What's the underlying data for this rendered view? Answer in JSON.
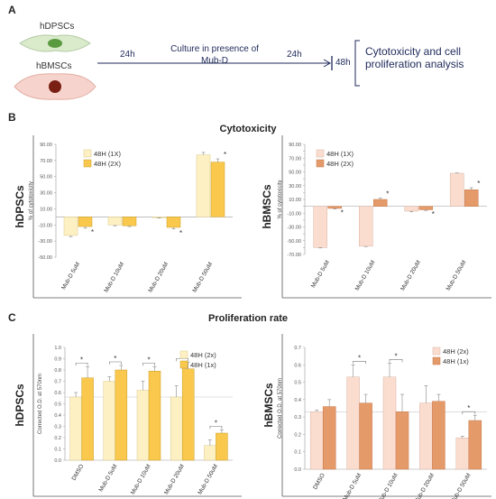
{
  "panels": {
    "A": "A",
    "B": "B",
    "C": "C"
  },
  "schematic": {
    "cell1": "hDPSCs",
    "cell2": "hBMSCs",
    "time1": "24h",
    "culture": "Culture in presence of Mub-D",
    "time2": "24h",
    "time3": "48h",
    "outcome": "Cytotoxicity and cell proliferation analysis"
  },
  "titles": {
    "cytotoxicity": "Cytotoxicity",
    "proliferation": "Proliferation rate"
  },
  "row_labels": {
    "dpsc": "hDPSCs",
    "bmsc": "hBMSCs"
  },
  "colors": {
    "light_yellow": "#FDF1C3",
    "yellow": "#F9C84C",
    "light_salmon": "#FBDDD0",
    "salmon": "#E59A6A"
  },
  "chart_data": [
    {
      "id": "b_left",
      "type": "bar",
      "ylabel": "% of cytotoxicity",
      "ylim": [
        -50,
        90
      ],
      "yticks": [
        -50,
        -30,
        -10,
        10,
        30,
        50,
        70,
        90
      ],
      "categories": [
        "Mub-D 5uM",
        "Mub-D 10uM",
        "Mub-D 20uM",
        "Mub-D 50uM"
      ],
      "series": [
        {
          "name": "48H (1X)",
          "values": [
            -23,
            -10,
            -1,
            77
          ],
          "errors": [
            1.5,
            1,
            0.5,
            3
          ]
        },
        {
          "name": "48H (2X)",
          "values": [
            -12,
            -11,
            -13,
            68
          ],
          "errors": [
            2,
            1,
            2,
            4
          ]
        }
      ],
      "stars": [
        "*",
        "",
        "*",
        "*"
      ],
      "legend": "top-left"
    },
    {
      "id": "b_right",
      "type": "bar",
      "ylabel": "% of cytotoxicity",
      "ylim": [
        -70,
        90
      ],
      "yticks": [
        -70,
        -60,
        -50,
        -40,
        -30,
        -20,
        -10,
        0,
        10,
        20,
        30,
        40,
        50,
        60,
        70,
        80,
        90
      ],
      "categories": [
        "Mub-D 5uM",
        "Mub-D 10uM",
        "Mub-D 20uM",
        "Mub-D 50uM"
      ],
      "series": [
        {
          "name": "48H (1X)",
          "values": [
            -60,
            -58,
            -7,
            48
          ],
          "errors": [
            0.5,
            0.5,
            1,
            0.5
          ]
        },
        {
          "name": "48H (2X)",
          "values": [
            -3,
            10,
            -5,
            24
          ],
          "errors": [
            1,
            2,
            1,
            3
          ]
        }
      ],
      "stars": [
        "*",
        "*",
        "*",
        "*"
      ],
      "legend": "top-left"
    },
    {
      "id": "c_left",
      "type": "bar",
      "ylabel": "Corrected O.D. at 570nm",
      "ylim": [
        0,
        1.0
      ],
      "yticks": [
        0,
        0.1,
        0.2,
        0.3,
        0.4,
        0.5,
        0.6,
        0.7,
        0.8,
        0.9,
        1.0
      ],
      "categories": [
        "DMSO",
        "Mub-D 5uM",
        "Mub-D 10uM",
        "Mub-D 20uM",
        "Mub-D 50uM"
      ],
      "series": [
        {
          "name": "48H (2x)",
          "values": [
            0.56,
            0.7,
            0.62,
            0.56,
            0.13
          ],
          "errors": [
            0.04,
            0.04,
            0.08,
            0.1,
            0.05
          ]
        },
        {
          "name": "48H (1x)",
          "values": [
            0.73,
            0.8,
            0.79,
            0.81,
            0.24
          ],
          "errors": [
            0.1,
            0.04,
            0.04,
            0.06,
            0.03
          ]
        }
      ],
      "stars": [
        "*",
        "*",
        "*",
        "*",
        "*"
      ],
      "reference_line": 0.56,
      "legend": "top-right"
    },
    {
      "id": "c_right",
      "type": "bar",
      "ylabel": "Corrected O.D. at 570nm",
      "ylim": [
        0,
        0.7
      ],
      "yticks": [
        0,
        0.1,
        0.2,
        0.3,
        0.4,
        0.5,
        0.6,
        0.7
      ],
      "categories": [
        "DMSO",
        "Mub-D 5uM",
        "Mub-D 10uM",
        "Mub-D 20uM",
        "Mub-D 50uM"
      ],
      "series": [
        {
          "name": "48H (2x)",
          "values": [
            0.33,
            0.53,
            0.53,
            0.38,
            0.18
          ],
          "errors": [
            0.01,
            0.07,
            0.08,
            0.1,
            0.01
          ]
        },
        {
          "name": "48H (1x)",
          "values": [
            0.36,
            0.38,
            0.33,
            0.39,
            0.28
          ],
          "errors": [
            0.04,
            0.05,
            0.1,
            0.04,
            0.03
          ]
        }
      ],
      "stars": [
        "",
        "*",
        "*",
        "",
        "*"
      ],
      "reference_line": 0.33,
      "legend": "top-right"
    }
  ]
}
